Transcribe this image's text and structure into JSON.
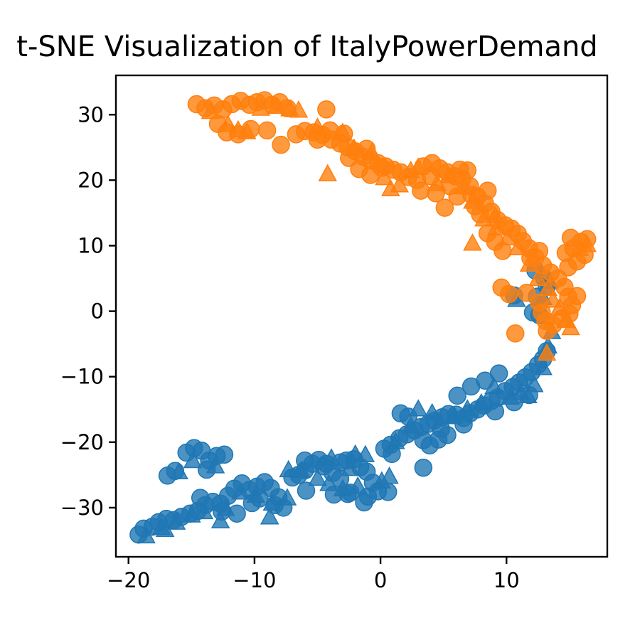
{
  "chart_data": {
    "type": "scatter",
    "title": "t-SNE Visualization of ItalyPowerDemand",
    "xlabel": "",
    "ylabel": "",
    "xlim": [
      -21,
      18
    ],
    "ylim": [
      -37.5,
      36
    ],
    "xticks": [
      -20,
      -10,
      0,
      10
    ],
    "yticks": [
      -30,
      -20,
      -10,
      0,
      10,
      20,
      30
    ],
    "xtick_labels": [
      "−20",
      "−10",
      "0",
      "10"
    ],
    "ytick_labels": [
      "−30",
      "−20",
      "−10",
      "0",
      "10",
      "20",
      "30"
    ],
    "grid": false,
    "legend": "none",
    "marker_alpha": 0.8,
    "series": [
      {
        "color": "#1f77b4",
        "circles": [
          [
            -19.2,
            -34.1
          ],
          [
            -18.8,
            -33.2
          ],
          [
            -18.1,
            -32.9
          ],
          [
            -17.6,
            -32.2
          ],
          [
            -17.0,
            -31.7
          ],
          [
            -16.4,
            -31.9
          ],
          [
            -15.8,
            -31.4
          ],
          [
            -15.1,
            -30.9
          ],
          [
            -14.5,
            -30.5
          ],
          [
            -13.9,
            -29.6
          ],
          [
            -13.3,
            -29.1
          ],
          [
            -12.7,
            -29.4
          ],
          [
            -12.1,
            -28.2
          ],
          [
            -11.6,
            -27.1
          ],
          [
            -11.0,
            -26.3
          ],
          [
            -10.4,
            -27.3
          ],
          [
            -9.8,
            -26.8
          ],
          [
            -9.2,
            -26.1
          ],
          [
            -8.7,
            -27.0
          ],
          [
            -8.1,
            -28.4
          ],
          [
            -7.7,
            -30.0
          ],
          [
            -8.4,
            -29.6
          ],
          [
            -7.0,
            -25.4
          ],
          [
            -6.5,
            -25.0
          ],
          [
            -6.0,
            -24.3
          ],
          [
            -5.4,
            -23.3
          ],
          [
            -4.9,
            -22.7
          ],
          [
            -4.3,
            -23.3
          ],
          [
            -3.8,
            -24.7
          ],
          [
            -3.2,
            -23.1
          ],
          [
            -2.7,
            -22.8
          ],
          [
            -2.1,
            -22.6
          ],
          [
            -1.6,
            -23.8
          ],
          [
            -1.1,
            -24.5
          ],
          [
            -0.6,
            -26.2
          ],
          [
            -0.2,
            -27.5
          ],
          [
            0.6,
            -27.6
          ],
          [
            -1.0,
            -28.3
          ],
          [
            -2.4,
            -27.7
          ],
          [
            -3.7,
            -28.0
          ],
          [
            -5.9,
            -27.4
          ],
          [
            0.3,
            -21.0
          ],
          [
            0.8,
            -20.4
          ],
          [
            1.5,
            -19.4
          ],
          [
            2.1,
            -18.8
          ],
          [
            2.7,
            -18.2
          ],
          [
            3.2,
            -17.7
          ],
          [
            3.8,
            -17.2
          ],
          [
            4.3,
            -16.7
          ],
          [
            4.9,
            -16.2
          ],
          [
            5.4,
            -15.7
          ],
          [
            6.0,
            -15.8
          ],
          [
            6.6,
            -16.3
          ],
          [
            7.1,
            -15.6
          ],
          [
            7.7,
            -15.0
          ],
          [
            8.2,
            -14.4
          ],
          [
            8.8,
            -13.7
          ],
          [
            9.3,
            -13.2
          ],
          [
            9.9,
            -12.2
          ],
          [
            10.5,
            -11.6
          ],
          [
            11.0,
            -10.9
          ],
          [
            11.5,
            -10.1
          ],
          [
            12.0,
            -9.3
          ],
          [
            12.5,
            -8.2
          ],
          [
            12.9,
            -7.3
          ],
          [
            13.2,
            -6.1
          ],
          [
            11.8,
            -12.8
          ],
          [
            10.6,
            -13.9
          ],
          [
            9.1,
            -15.3
          ],
          [
            4.6,
            -19.6
          ],
          [
            3.9,
            -20.5
          ],
          [
            5.3,
            -18.9
          ],
          [
            6.1,
            -12.9
          ],
          [
            1.6,
            -15.6
          ],
          [
            2.2,
            -16.1
          ],
          [
            4.8,
            -18.0
          ],
          [
            6.6,
            -17.3
          ],
          [
            3.4,
            -19.7
          ],
          [
            0.9,
            -21.8
          ],
          [
            7.2,
            -11.5
          ],
          [
            8.3,
            -10.6
          ],
          [
            9.4,
            -9.5
          ],
          [
            -15.4,
            -21.6
          ],
          [
            -14.8,
            -20.9
          ],
          [
            -14.2,
            -21.3
          ],
          [
            -13.6,
            -22.8
          ],
          [
            -13.0,
            -22.1
          ],
          [
            -12.4,
            -21.9
          ],
          [
            -13.8,
            -24.2
          ],
          [
            -16.3,
            -24.4
          ],
          [
            -16.9,
            -25.1
          ],
          [
            -14.3,
            -28.5
          ],
          [
            -12.6,
            -30.6
          ],
          [
            -11.4,
            -30.9
          ],
          [
            -10.2,
            -29.3
          ],
          [
            -9.6,
            -28.6
          ],
          [
            -6.0,
            -22.8
          ],
          [
            -4.5,
            -23.7
          ],
          [
            -3.2,
            -25.6
          ],
          [
            -2.6,
            -27.9
          ],
          [
            -1.3,
            -29.2
          ],
          [
            3.4,
            -23.9
          ],
          [
            12.1,
            -0.2
          ],
          [
            12.6,
            -0.6
          ],
          [
            10.6,
            2.4
          ],
          [
            12.3,
            6.2
          ],
          [
            13.0,
            5.0
          ],
          [
            12.4,
            2.2
          ],
          [
            13.2,
            3.8
          ]
        ],
        "triangles": [
          [
            -18.6,
            -34.4
          ],
          [
            -17.4,
            -33.1
          ],
          [
            -16.2,
            -32.3
          ],
          [
            -15.0,
            -31.2
          ],
          [
            -14.0,
            -30.7
          ],
          [
            -12.3,
            -30.2
          ],
          [
            -11.1,
            -27.7
          ],
          [
            -9.9,
            -28.2
          ],
          [
            -8.6,
            -29.4
          ],
          [
            -7.4,
            -28.6
          ],
          [
            -7.3,
            -24.3
          ],
          [
            -6.3,
            -24.4
          ],
          [
            -5.0,
            -25.6
          ],
          [
            -3.9,
            -22.5
          ],
          [
            -2.4,
            -24.1
          ],
          [
            -1.2,
            -22.0
          ],
          [
            0.1,
            -26.0
          ],
          [
            -1.8,
            -26.8
          ],
          [
            -3.0,
            -27.2
          ],
          [
            -4.1,
            -26.4
          ],
          [
            1.2,
            -20.0
          ],
          [
            2.4,
            -17.6
          ],
          [
            3.0,
            -15.0
          ],
          [
            4.1,
            -15.6
          ],
          [
            5.8,
            -16.2
          ],
          [
            6.9,
            -15.0
          ],
          [
            8.0,
            -14.1
          ],
          [
            9.0,
            -11.6
          ],
          [
            10.3,
            -13.2
          ],
          [
            11.1,
            -12.5
          ],
          [
            11.7,
            -13.0
          ],
          [
            12.2,
            -11.3
          ],
          [
            12.9,
            -8.7
          ],
          [
            13.3,
            -5.4
          ],
          [
            13.6,
            -3.2
          ],
          [
            10.8,
            1.7
          ],
          [
            12.9,
            2.0
          ],
          [
            13.4,
            4.5
          ],
          [
            -14.9,
            -22.9
          ],
          [
            -13.1,
            -23.7
          ],
          [
            -16.0,
            -24.6
          ],
          [
            -8.8,
            -31.5
          ],
          [
            -12.7,
            -32.1
          ],
          [
            -17.1,
            -33.4
          ],
          [
            -2.0,
            -21.9
          ],
          [
            0.7,
            -25.3
          ]
        ]
      },
      {
        "color": "#ff7f0e",
        "circles": [
          [
            -14.6,
            31.6
          ],
          [
            -13.9,
            31.0
          ],
          [
            -13.2,
            31.4
          ],
          [
            -12.5,
            30.8
          ],
          [
            -11.8,
            31.6
          ],
          [
            -11.1,
            32.1
          ],
          [
            -10.4,
            31.5
          ],
          [
            -9.8,
            31.9
          ],
          [
            -9.2,
            32.2
          ],
          [
            -8.6,
            31.5
          ],
          [
            -8.0,
            31.9
          ],
          [
            -7.4,
            31.0
          ],
          [
            -4.3,
            30.8
          ],
          [
            -9.0,
            27.6
          ],
          [
            -7.9,
            25.4
          ],
          [
            -10.3,
            27.8
          ],
          [
            -11.3,
            27.0
          ],
          [
            -12.2,
            27.3
          ],
          [
            -12.9,
            28.6
          ],
          [
            -6.7,
            27.0
          ],
          [
            -6.0,
            27.5
          ],
          [
            -5.3,
            27.3
          ],
          [
            -4.6,
            26.9
          ],
          [
            -3.9,
            26.2
          ],
          [
            -3.2,
            25.6
          ],
          [
            -2.6,
            25.0
          ],
          [
            -2.0,
            24.4
          ],
          [
            -1.4,
            23.6
          ],
          [
            -0.8,
            23.0
          ],
          [
            -0.2,
            22.6
          ],
          [
            0.4,
            22.1
          ],
          [
            1.0,
            21.6
          ],
          [
            1.6,
            21.2
          ],
          [
            2.2,
            20.5
          ],
          [
            2.9,
            20.0
          ],
          [
            3.4,
            22.1
          ],
          [
            4.1,
            22.6
          ],
          [
            4.7,
            21.8
          ],
          [
            5.3,
            21.2
          ],
          [
            5.9,
            20.6
          ],
          [
            6.5,
            20.2
          ],
          [
            7.1,
            19.1
          ],
          [
            7.7,
            17.5
          ],
          [
            8.3,
            16.4
          ],
          [
            8.8,
            15.2
          ],
          [
            9.3,
            13.9
          ],
          [
            9.9,
            13.1
          ],
          [
            10.4,
            12.6
          ],
          [
            10.9,
            11.8
          ],
          [
            11.3,
            10.7
          ],
          [
            11.8,
            9.6
          ],
          [
            12.3,
            8.2
          ],
          [
            12.9,
            7.0
          ],
          [
            13.5,
            5.9
          ],
          [
            14.1,
            5.0
          ],
          [
            14.6,
            3.7
          ],
          [
            14.9,
            2.2
          ],
          [
            15.2,
            0.9
          ],
          [
            15.6,
            2.3
          ],
          [
            15.0,
            -0.4
          ],
          [
            14.4,
            -1.1
          ],
          [
            13.7,
            -2.1
          ],
          [
            13.1,
            -1.5
          ],
          [
            12.8,
            -0.2
          ],
          [
            12.6,
            1.3
          ],
          [
            9.6,
            3.6
          ],
          [
            10.2,
            2.6
          ],
          [
            11.6,
            2.8
          ],
          [
            10.7,
            -3.4
          ],
          [
            13.2,
            -3.0
          ],
          [
            14.7,
            8.9
          ],
          [
            15.3,
            9.6
          ],
          [
            15.9,
            10.6
          ],
          [
            16.4,
            11.0
          ],
          [
            15.1,
            11.2
          ],
          [
            15.6,
            7.6
          ],
          [
            16.2,
            8.6
          ],
          [
            14.9,
            6.7
          ],
          [
            12.6,
            9.2
          ],
          [
            11.9,
            8.1
          ],
          [
            -0.8,
            20.8
          ],
          [
            0.1,
            21.9
          ],
          [
            3.2,
            18.4
          ],
          [
            4.4,
            18.0
          ],
          [
            5.1,
            15.8
          ],
          [
            6.1,
            17.5
          ],
          [
            6.3,
            21.6
          ],
          [
            7.2,
            17.8
          ],
          [
            7.9,
            14.8
          ],
          [
            8.5,
            11.9
          ],
          [
            9.1,
            10.6
          ],
          [
            9.7,
            9.2
          ],
          [
            8.5,
            18.4
          ],
          [
            7.5,
            16.0
          ],
          [
            -1.7,
            21.7
          ],
          [
            -2.5,
            23.4
          ],
          [
            -5.0,
            26.2
          ],
          [
            -4.0,
            27.6
          ],
          [
            -2.9,
            27.1
          ],
          [
            -1.1,
            24.8
          ],
          [
            4.0,
            20.6
          ],
          [
            5.5,
            19.1
          ],
          [
            6.9,
            21.5
          ]
        ],
        "triangles": [
          [
            -13.5,
            30.4
          ],
          [
            -12.1,
            28.4
          ],
          [
            -11.3,
            27.6
          ],
          [
            -10.6,
            27.3
          ],
          [
            -9.5,
            30.9
          ],
          [
            -8.3,
            31.2
          ],
          [
            -7.2,
            30.8
          ],
          [
            -6.5,
            30.6
          ],
          [
            -5.0,
            28.0
          ],
          [
            -4.2,
            20.9
          ],
          [
            -3.0,
            27.2
          ],
          [
            -2.1,
            24.8
          ],
          [
            -0.7,
            24.1
          ],
          [
            0.3,
            20.3
          ],
          [
            0.8,
            18.6
          ],
          [
            1.5,
            19.2
          ],
          [
            2.4,
            21.4
          ],
          [
            3.0,
            21.9
          ],
          [
            4.5,
            19.4
          ],
          [
            5.4,
            20.6
          ],
          [
            6.6,
            18.9
          ],
          [
            7.3,
            16.7
          ],
          [
            8.2,
            14.0
          ],
          [
            9.2,
            12.6
          ],
          [
            10.1,
            11.1
          ],
          [
            10.9,
            9.6
          ],
          [
            11.8,
            7.1
          ],
          [
            12.5,
            4.9
          ],
          [
            13.3,
            3.4
          ],
          [
            13.7,
            1.6
          ],
          [
            14.2,
            0.4
          ],
          [
            14.7,
            -1.5
          ],
          [
            13.2,
            -6.5
          ],
          [
            15.1,
            -2.6
          ],
          [
            15.8,
            9.5
          ],
          [
            16.4,
            10.1
          ],
          [
            7.3,
            10.3
          ],
          [
            9.1,
            14.5
          ]
        ]
      }
    ]
  }
}
